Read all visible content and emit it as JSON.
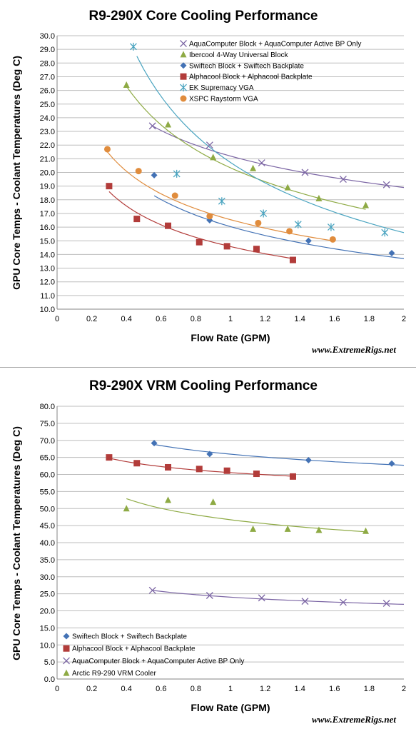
{
  "divider_color": "#aaaaaa",
  "chart_data": [
    {
      "type": "scatter",
      "title": "R9-290X Core Cooling Performance",
      "xlabel": "Flow Rate (GPM)",
      "ylabel": "GPU Core Temps - Coolant Temperatures (Deg C)",
      "watermark": "www.ExtremeRigs.net",
      "xlim": [
        0,
        2
      ],
      "ylim": [
        10,
        30
      ],
      "xticks": [
        "0",
        "0.2",
        "0.4",
        "0.6",
        "0.8",
        "1",
        "1.2",
        "1.4",
        "1.6",
        "1.8",
        "2"
      ],
      "yticks": [
        "10.0",
        "11.0",
        "12.0",
        "13.0",
        "14.0",
        "15.0",
        "16.0",
        "17.0",
        "18.0",
        "19.0",
        "20.0",
        "21.0",
        "22.0",
        "23.0",
        "24.0",
        "25.0",
        "26.0",
        "27.0",
        "28.0",
        "29.0",
        "30.0"
      ],
      "grid": "horizontal",
      "legend": "top-right",
      "series": [
        {
          "name": "AquaComputer Block + AquaComputer Active BP Only",
          "marker": "x",
          "color": "#7b65a4",
          "x": [
            0.55,
            0.88,
            1.18,
            1.43,
            1.65,
            1.9
          ],
          "y": [
            23.4,
            22.0,
            20.7,
            20.0,
            19.5,
            19.1
          ],
          "trend": {
            "x": [
              0.55,
              2.0
            ],
            "y": [
              23.4,
              18.9
            ]
          }
        },
        {
          "name": "Ibercool 4-Way Universal Block",
          "marker": "triangle",
          "color": "#8eaa44",
          "x": [
            0.4,
            0.64,
            0.9,
            1.13,
            1.33,
            1.51,
            1.78
          ],
          "y": [
            26.4,
            23.5,
            21.1,
            20.3,
            18.9,
            18.1,
            17.6
          ],
          "trend": {
            "x": [
              0.4,
              1.78
            ],
            "y": [
              26.3,
              17.3
            ]
          }
        },
        {
          "name": "Swiftech Block + Swiftech Backplate",
          "marker": "diamond",
          "color": "#4372b5",
          "x": [
            0.56,
            0.88,
            1.45,
            1.93
          ],
          "y": [
            19.8,
            16.5,
            15.0,
            14.1
          ],
          "trend": {
            "x": [
              0.56,
              2.0
            ],
            "y": [
              18.3,
              13.7
            ]
          }
        },
        {
          "name": "Alphacool Block + Alphacool Backplate",
          "marker": "square",
          "color": "#b23c3a",
          "x": [
            0.3,
            0.46,
            0.64,
            0.82,
            0.98,
            1.15,
            1.36
          ],
          "y": [
            19.0,
            16.6,
            16.1,
            14.9,
            14.6,
            14.4,
            13.6
          ],
          "trend": {
            "x": [
              0.3,
              1.36
            ],
            "y": [
              18.6,
              13.7
            ]
          }
        },
        {
          "name": "EK Supremacy VGA",
          "marker": "asterisk",
          "color": "#4aa4c0",
          "x": [
            0.44,
            0.69,
            0.95,
            1.19,
            1.39,
            1.58,
            1.89
          ],
          "y": [
            29.2,
            19.9,
            17.9,
            17.0,
            16.2,
            16.0,
            15.6
          ],
          "trend": {
            "x": [
              0.46,
              2.0
            ],
            "y": [
              28.5,
              15.6
            ]
          }
        },
        {
          "name": "XSPC Raystorm  VGA",
          "marker": "circle",
          "color": "#e08c3d",
          "x": [
            0.29,
            0.47,
            0.68,
            0.88,
            1.16,
            1.34,
            1.59
          ],
          "y": [
            21.7,
            20.1,
            18.3,
            16.8,
            16.3,
            15.7,
            15.1
          ],
          "trend": {
            "x": [
              0.29,
              1.59
            ],
            "y": [
              21.5,
              15.0
            ]
          }
        }
      ]
    },
    {
      "type": "scatter",
      "title": "R9-290X VRM Cooling Performance",
      "xlabel": "Flow Rate (GPM)",
      "ylabel": "GPU Core Temps - Coolant Temperatures (Deg C)",
      "watermark": "www.ExtremeRigs.net",
      "xlim": [
        0,
        2
      ],
      "ylim": [
        0,
        80
      ],
      "xticks": [
        "0",
        "0.2",
        "0.4",
        "0.6",
        "0.8",
        "1",
        "1.2",
        "1.4",
        "1.6",
        "1.8",
        "2"
      ],
      "yticks": [
        "0.0",
        "5.0",
        "10.0",
        "15.0",
        "20.0",
        "25.0",
        "30.0",
        "35.0",
        "40.0",
        "45.0",
        "50.0",
        "55.0",
        "60.0",
        "65.0",
        "70.0",
        "75.0",
        "80.0"
      ],
      "grid": "horizontal",
      "legend": "bottom-left",
      "series": [
        {
          "name": "Swiftech Block + Swiftech Backplate",
          "marker": "diamond",
          "color": "#4372b5",
          "x": [
            0.56,
            0.88,
            1.45,
            1.93
          ],
          "y": [
            69.2,
            66.0,
            64.2,
            63.2
          ],
          "trend": {
            "x": [
              0.56,
              2.0
            ],
            "y": [
              68.8,
              62.7
            ]
          }
        },
        {
          "name": "Alphacool Block + Alphacool Backplate",
          "marker": "square",
          "color": "#b23c3a",
          "x": [
            0.3,
            0.46,
            0.64,
            0.82,
            0.98,
            1.15,
            1.36
          ],
          "y": [
            65.0,
            63.3,
            62.1,
            61.6,
            61.1,
            60.2,
            59.4
          ],
          "trend": {
            "x": [
              0.3,
              1.36
            ],
            "y": [
              64.8,
              59.5
            ]
          }
        },
        {
          "name": "AquaComputer Block + AquaComputer Active BP Only",
          "marker": "x",
          "color": "#7b65a4",
          "x": [
            0.55,
            0.88,
            1.18,
            1.43,
            1.65,
            1.9
          ],
          "y": [
            26.0,
            24.5,
            23.8,
            22.8,
            22.5,
            22.2
          ],
          "trend": {
            "x": [
              0.55,
              2.0
            ],
            "y": [
              26.0,
              21.9
            ]
          }
        },
        {
          "name": "Arctic R9-290 VRM Cooler",
          "marker": "triangle",
          "color": "#8eaa44",
          "x": [
            0.4,
            0.64,
            0.9,
            1.13,
            1.33,
            1.51,
            1.78
          ],
          "y": [
            50.0,
            52.5,
            51.9,
            44.0,
            44.0,
            43.7,
            43.4
          ],
          "trend": {
            "x": [
              0.4,
              1.78
            ],
            "y": [
              52.9,
              43.2
            ]
          }
        }
      ]
    }
  ]
}
